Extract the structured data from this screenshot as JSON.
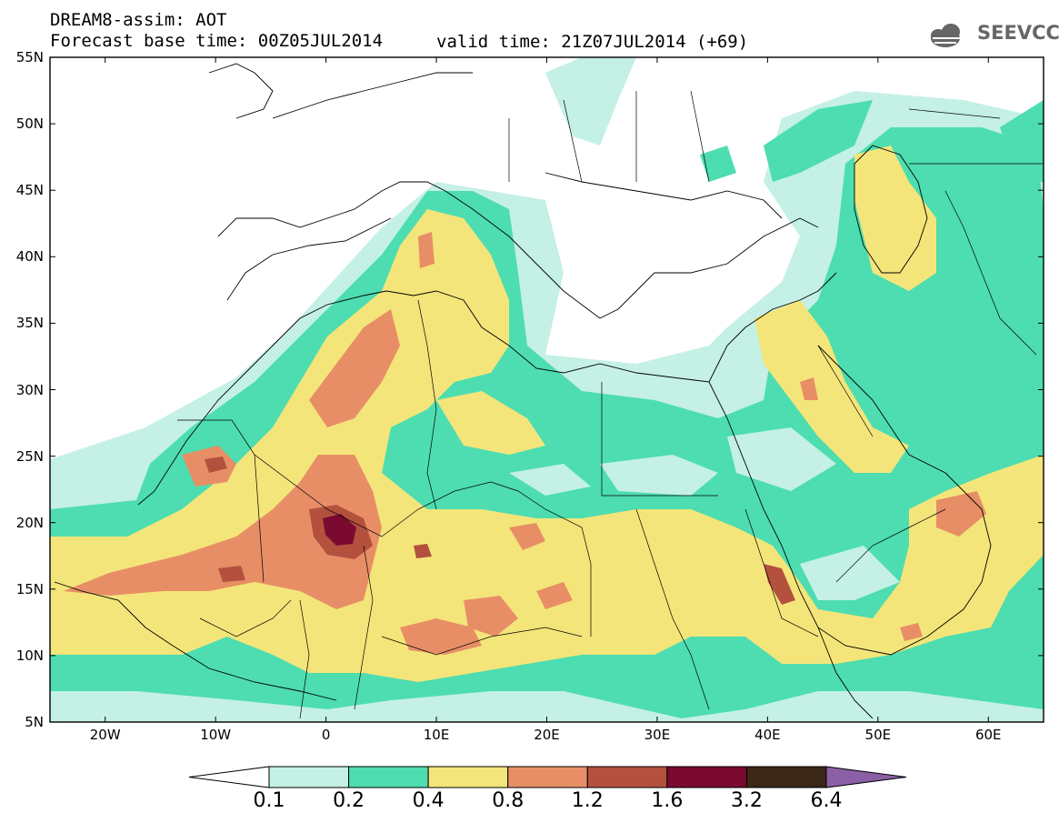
{
  "header": {
    "line1": "DREAM8-assim: AOT",
    "line2": "Forecast base time: 00Z05JUL2014",
    "valid": "valid time: 21Z07JUL2014 (+69)",
    "logo_text": "SEEVCCC"
  },
  "map": {
    "lon_range": [
      -25,
      65
    ],
    "lat_range": [
      5,
      55
    ],
    "lat_ticks": [
      "55N",
      "50N",
      "45N",
      "40N",
      "35N",
      "30N",
      "25N",
      "20N",
      "15N",
      "10N",
      "5N"
    ],
    "lon_ticks": [
      "20W",
      "10W",
      "0",
      "10E",
      "20E",
      "30E",
      "40E",
      "50E",
      "60E"
    ]
  },
  "colorbar": {
    "labels": [
      "0.1",
      "0.2",
      "0.4",
      "0.8",
      "1.2",
      "1.6",
      "3.2",
      "6.4"
    ],
    "colors": [
      "#ffffff",
      "#c4f0e6",
      "#4dddb0",
      "#f4e57a",
      "#e88e66",
      "#b4503e",
      "#7a0a30",
      "#3c2618",
      "#8b5fa6"
    ]
  }
}
